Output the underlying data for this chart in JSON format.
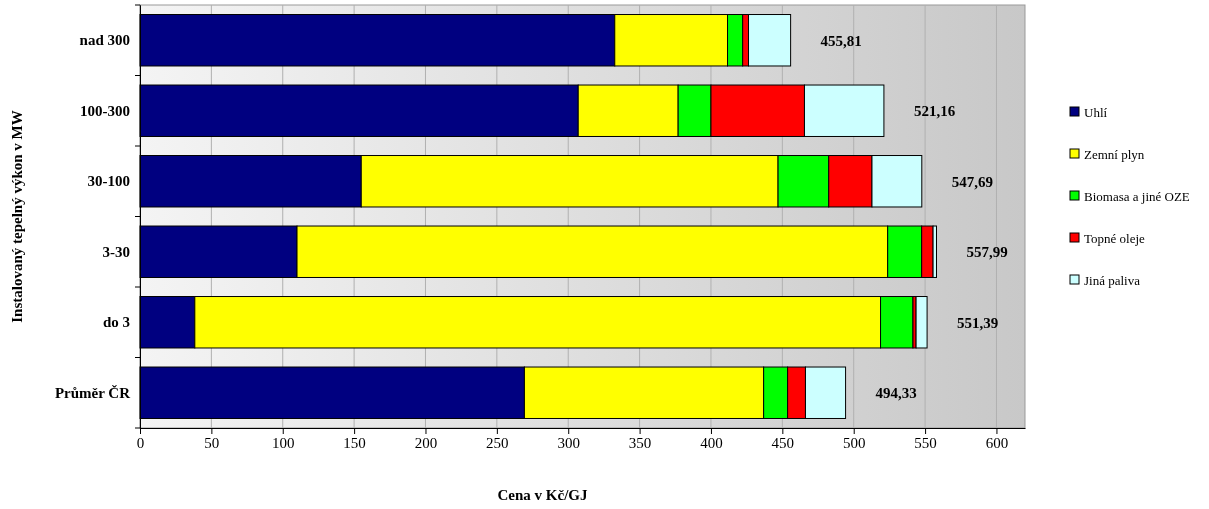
{
  "chart_data": {
    "type": "bar",
    "orientation": "horizontal",
    "stacked": true,
    "xlabel": "Cena v Kč/GJ",
    "ylabel": "Instalovaný tepelný výkon v MW",
    "categories": [
      "nad 300",
      "100-300",
      "30-100",
      "3-30",
      "do 3",
      "Průměr ČR"
    ],
    "series": [
      {
        "name": "Uhlí",
        "color": "#000080",
        "values": [
          332.6,
          307,
          155,
          110,
          38.4,
          269.3
        ]
      },
      {
        "name": "Zemní plyn",
        "color": "#ffff00",
        "values": [
          79,
          70,
          292,
          413.8,
          480.4,
          167.6
        ]
      },
      {
        "name": "Biomasa a jiné OZE",
        "color": "#00ff00",
        "values": [
          10.6,
          23,
          35.5,
          23.8,
          22.7,
          16.8
        ]
      },
      {
        "name": "Topné oleje",
        "color": "#ff0000",
        "values": [
          4.1,
          65.5,
          30.3,
          8,
          2.2,
          12.5
        ]
      },
      {
        "name": "Jiná paliva",
        "color": "#ccffff",
        "values": [
          29.5,
          55.66,
          34.9,
          2.4,
          7.7,
          28.1
        ]
      }
    ],
    "totals": [
      "455,81",
      "521,16",
      "547,69",
      "557,99",
      "551,39",
      "494,33"
    ],
    "xlim": [
      0,
      620
    ],
    "xticks": [
      0,
      50,
      100,
      150,
      200,
      250,
      300,
      350,
      400,
      450,
      500,
      550,
      600
    ],
    "grid": "x",
    "legend": "right"
  }
}
